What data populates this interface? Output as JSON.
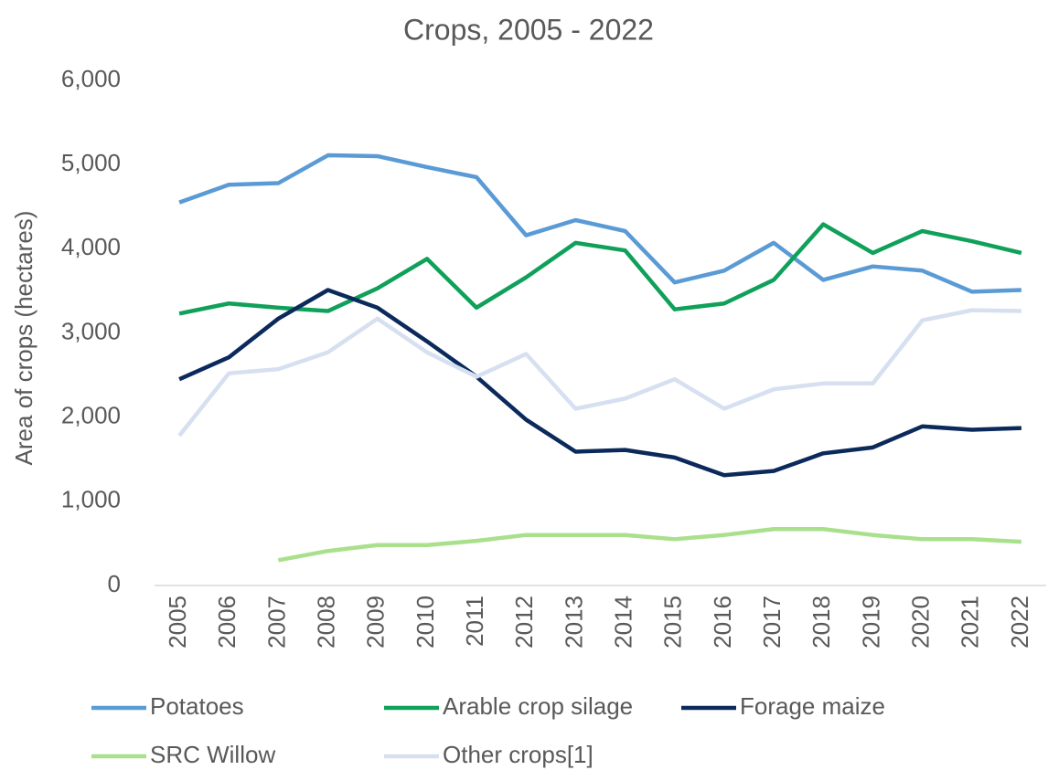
{
  "chart_data": {
    "type": "line",
    "title": "Crops, 2005 - 2022",
    "y_label": "Area of crops (hectares)",
    "categories": [
      "2005",
      "2006",
      "2007",
      "2008",
      "2009",
      "2010",
      "2011",
      "2012",
      "2013",
      "2014",
      "2015",
      "2016",
      "2017",
      "2018",
      "2019",
      "2020",
      "2021",
      "2022"
    ],
    "series": [
      {
        "name": "Potatoes",
        "color": "#5b9bd5",
        "values": [
          4550,
          4760,
          4780,
          5110,
          5100,
          4970,
          4850,
          4160,
          4340,
          4210,
          3600,
          3740,
          4070,
          3630,
          3790,
          3740,
          3490,
          3510
        ]
      },
      {
        "name": "Arable crop silage",
        "color": "#0fa05a",
        "values": [
          3230,
          3350,
          3300,
          3260,
          3530,
          3880,
          3300,
          3660,
          4070,
          3980,
          3280,
          3350,
          3630,
          4290,
          3950,
          4210,
          4090,
          3950
        ]
      },
      {
        "name": "Forage maize",
        "color": "#0b2a5b",
        "values": [
          2450,
          2710,
          3170,
          3510,
          3300,
          2900,
          2480,
          1970,
          1590,
          1610,
          1520,
          1310,
          1360,
          1570,
          1640,
          1890,
          1850,
          1870
        ]
      },
      {
        "name": "SRC Willow",
        "color": "#a9e08c",
        "values": [
          null,
          null,
          300,
          410,
          480,
          480,
          530,
          600,
          600,
          600,
          550,
          600,
          670,
          670,
          600,
          550,
          550,
          520
        ]
      },
      {
        "name": "Other crops[1]",
        "color": "#d6e0f0",
        "values": [
          1780,
          2520,
          2570,
          2770,
          3170,
          2770,
          2480,
          2750,
          2100,
          2220,
          2450,
          2100,
          2330,
          2400,
          2400,
          3150,
          3270,
          3260
        ]
      }
    ],
    "ylim": [
      0,
      6000
    ],
    "yticks": [
      0,
      {
        "value": 1000,
        "label": "1,000"
      },
      {
        "value": 2000,
        "label": "2,000"
      },
      {
        "value": 3000,
        "label": "3,000"
      },
      {
        "value": 4000,
        "label": "4,000"
      },
      {
        "value": 5000,
        "label": "5,000"
      },
      {
        "value": 6000,
        "label": "6,000"
      }
    ],
    "grid": false,
    "legend": "bottom"
  }
}
